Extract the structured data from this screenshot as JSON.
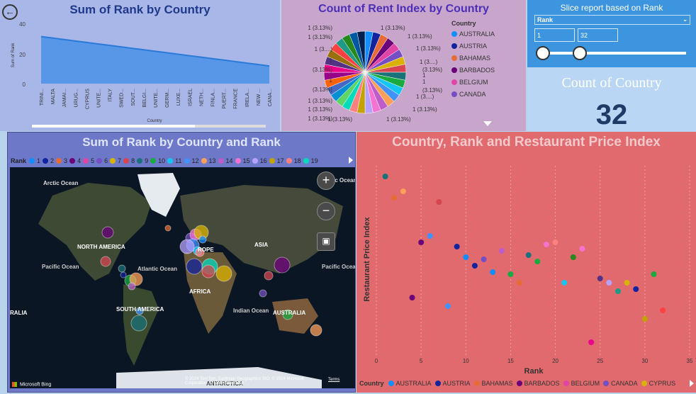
{
  "nav": {
    "back_icon": "back-arrow-icon"
  },
  "chart1": {
    "title": "Sum of Rank by Country",
    "xlabel": "Country",
    "ylabel": "Sum of Rank",
    "ticks_y": [
      "40",
      "20",
      "0"
    ],
    "x_labels": [
      "TRINI...",
      "MALTA",
      "JAMAI...",
      "URUG...",
      "CYPRUS",
      "UNITE...",
      "ITALY",
      "SWED...",
      "SOUT...",
      "BELGI...",
      "UNITE...",
      "GERM...",
      "LUXE...",
      "ISRAEL",
      "NETH...",
      "FINLA...",
      "PUERT...",
      "FRANCE",
      "IRELA...",
      "NEW ...",
      "CANA..."
    ]
  },
  "chart2": {
    "title": "Count of Rent Index by Country",
    "legend_title": "Country",
    "legend": [
      {
        "name": "AUSTRALIA",
        "color": "#118dff"
      },
      {
        "name": "AUSTRIA",
        "color": "#12239e"
      },
      {
        "name": "BAHAMAS",
        "color": "#e66c37"
      },
      {
        "name": "BARBADOS",
        "color": "#6b007b"
      },
      {
        "name": "BELGIUM",
        "color": "#e044a7"
      },
      {
        "name": "CANADA",
        "color": "#744ec2"
      }
    ],
    "slice_labels_left": [
      "1 (3.13%)",
      "1 (3.13%)",
      "1 (3....)",
      "1",
      "(3.13%)",
      "1",
      "(3.13%)",
      "1 (3.13%)",
      "1 (3.13%)",
      "1 (3.13%)",
      "1 (3.13%)"
    ],
    "slice_labels_right": [
      "1 (3.13%)",
      "1 (3.13%)",
      "1 (3.13%)",
      "1 (3....)",
      "1",
      "(3.13%)",
      "1",
      "(3.13%)",
      "1 (3....)",
      "1 (3.13%)",
      "1 (3.13%)"
    ],
    "more_icon": "caret-down-icon"
  },
  "slicer": {
    "title": "Slice report based on Rank",
    "field": "Rank",
    "min_value": "1",
    "max_value": "32"
  },
  "card": {
    "label": "Count of Country",
    "value": "32"
  },
  "map": {
    "title": "Sum of Rank by Country and Rank",
    "legend_title": "Rank",
    "legend": [
      {
        "label": "1",
        "color": "#118dff"
      },
      {
        "label": "2",
        "color": "#12239e"
      },
      {
        "label": "3",
        "color": "#e66c37"
      },
      {
        "label": "4",
        "color": "#6b007b"
      },
      {
        "label": "5",
        "color": "#e044a7"
      },
      {
        "label": "6",
        "color": "#744ec2"
      },
      {
        "label": "7",
        "color": "#d9b300"
      },
      {
        "label": "8",
        "color": "#d64550"
      },
      {
        "label": "9",
        "color": "#197278"
      },
      {
        "label": "10",
        "color": "#1aab40"
      },
      {
        "label": "11",
        "color": "#15c6f4"
      },
      {
        "label": "12",
        "color": "#4092ff"
      },
      {
        "label": "13",
        "color": "#ffa058"
      },
      {
        "label": "14",
        "color": "#be5dc9"
      },
      {
        "label": "15",
        "color": "#f472d0"
      },
      {
        "label": "16",
        "color": "#b5a1ff"
      },
      {
        "label": "17",
        "color": "#c4a200"
      },
      {
        "label": "18",
        "color": "#ff8080"
      },
      {
        "label": "19",
        "color": "#00dbbc"
      }
    ],
    "labels": {
      "arctic": "Arctic Ocean",
      "arctic2": "Arctic Ocean",
      "north_america": "NORTH AMERICA",
      "europe": "ROPE",
      "asia": "ASIA",
      "africa": "AFRICA",
      "south_america": "SOUTH AMERICA",
      "australia": "AUSTRALIA",
      "australia_left": "RALIA",
      "atlantic": "Atlantic Ocean",
      "pacific_l": "Pacific Ocean",
      "pacific_r": "Pacific Ocean",
      "indian": "Indian Ocean",
      "antarctica": "ANTARCTICA"
    },
    "credit": "© 2024 TomTom, Earthstar Geographics SIO, © 2024 Microsoft Corporation, © OpenStreetMap",
    "terms": "Terms",
    "bing": "Microsoft Bing",
    "zoom_in": "+",
    "zoom_out": "−"
  },
  "chart3": {
    "title": "Country, Rank and Restaurant Price Index",
    "xlabel": "Rank",
    "ylabel": "Restaurant Price Index",
    "legend_title": "Country",
    "legend": [
      {
        "name": "AUSTRALIA",
        "color": "#118dff"
      },
      {
        "name": "AUSTRIA",
        "color": "#12239e"
      },
      {
        "name": "BAHAMAS",
        "color": "#e66c37"
      },
      {
        "name": "BARBADOS",
        "color": "#6b007b"
      },
      {
        "name": "BELGIUM",
        "color": "#e044a7"
      },
      {
        "name": "CANADA",
        "color": "#744ec2"
      },
      {
        "name": "CYPRUS",
        "color": "#d9b300"
      }
    ]
  },
  "chart_data": [
    {
      "type": "area",
      "title": "Sum of Rank by Country",
      "xlabel": "Country",
      "ylabel": "Sum of Rank",
      "ylim": [
        0,
        40
      ],
      "categories": [
        "TRINI...",
        "MALTA",
        "JAMAI...",
        "URUG...",
        "CYPRUS",
        "UNITE...",
        "ITALY",
        "SWED...",
        "SOUT...",
        "BELGI...",
        "UNITE...",
        "GERM...",
        "LUXE...",
        "ISRAEL",
        "NETH...",
        "FINLA...",
        "PUERT...",
        "FRANCE",
        "IRELA...",
        "NEW ...",
        "CANA..."
      ],
      "values": [
        32,
        31,
        30,
        29,
        28,
        27,
        26,
        25,
        24,
        23,
        22,
        21,
        20,
        19,
        18,
        17,
        16,
        15,
        14,
        13,
        12
      ],
      "color": "#4a90e8"
    },
    {
      "type": "pie",
      "title": "Count of Rent Index by Country",
      "slice_count": 32,
      "slice_value": 1,
      "slice_percent": 3.13,
      "colors": [
        "#118dff",
        "#12239e",
        "#e66c37",
        "#6b007b",
        "#e044a7",
        "#744ec2",
        "#d9b300",
        "#d64550",
        "#197278",
        "#1aab40",
        "#15c6f4",
        "#4092ff",
        "#ffa058",
        "#be5dc9",
        "#f472d0",
        "#b5a1ff",
        "#c4a200",
        "#ff8080",
        "#00dbbc",
        "#5bd667",
        "#0091d5",
        "#4668c5",
        "#ff6300",
        "#99008a",
        "#ec008c",
        "#533285",
        "#99700a",
        "#ff4141",
        "#1f9a85",
        "#25891c",
        "#0057a2",
        "#002050"
      ]
    },
    {
      "type": "scatter",
      "title": "Country, Rank and Restaurant Price Index",
      "xlabel": "Rank",
      "ylabel": "Restaurant Price Index",
      "xlim": [
        0,
        35
      ],
      "ylim": [
        10,
        100
      ],
      "x_ticks": [
        "0",
        "5",
        "10",
        "15",
        "20",
        "25",
        "30",
        "35"
      ],
      "points": [
        {
          "x": 1,
          "y": 95,
          "color": "#197278"
        },
        {
          "x": 2,
          "y": 85,
          "color": "#e66c37"
        },
        {
          "x": 3,
          "y": 88,
          "color": "#ffa058"
        },
        {
          "x": 4,
          "y": 38,
          "color": "#6b007b"
        },
        {
          "x": 5,
          "y": 64,
          "color": "#6b007b"
        },
        {
          "x": 6,
          "y": 67,
          "color": "#4092ff"
        },
        {
          "x": 7,
          "y": 83,
          "color": "#d64550"
        },
        {
          "x": 8,
          "y": 34,
          "color": "#4092ff"
        },
        {
          "x": 9,
          "y": 62,
          "color": "#12239e"
        },
        {
          "x": 10,
          "y": 57,
          "color": "#118dff"
        },
        {
          "x": 11,
          "y": 53,
          "color": "#12239e"
        },
        {
          "x": 12,
          "y": 56,
          "color": "#744ec2"
        },
        {
          "x": 13,
          "y": 50,
          "color": "#118dff"
        },
        {
          "x": 14,
          "y": 60,
          "color": "#be5dc9"
        },
        {
          "x": 15,
          "y": 49,
          "color": "#1aab40"
        },
        {
          "x": 16,
          "y": 45,
          "color": "#e66c37"
        },
        {
          "x": 17,
          "y": 58,
          "color": "#197278"
        },
        {
          "x": 18,
          "y": 55,
          "color": "#1aab40"
        },
        {
          "x": 19,
          "y": 63,
          "color": "#f472d0"
        },
        {
          "x": 20,
          "y": 64,
          "color": "#ff8080"
        },
        {
          "x": 21,
          "y": 45,
          "color": "#15c6f4"
        },
        {
          "x": 22,
          "y": 57,
          "color": "#25891c"
        },
        {
          "x": 23,
          "y": 61,
          "color": "#f472d0"
        },
        {
          "x": 24,
          "y": 17,
          "color": "#ec008c"
        },
        {
          "x": 25,
          "y": 47,
          "color": "#533285"
        },
        {
          "x": 26,
          "y": 45,
          "color": "#b5a1ff"
        },
        {
          "x": 27,
          "y": 41,
          "color": "#1f9a85"
        },
        {
          "x": 28,
          "y": 45,
          "color": "#d9b300"
        },
        {
          "x": 29,
          "y": 42,
          "color": "#12239e"
        },
        {
          "x": 30,
          "y": 28,
          "color": "#c4a200"
        },
        {
          "x": 31,
          "y": 49,
          "color": "#1aab40"
        },
        {
          "x": 32,
          "y": 32,
          "color": "#ff4141"
        }
      ]
    }
  ]
}
